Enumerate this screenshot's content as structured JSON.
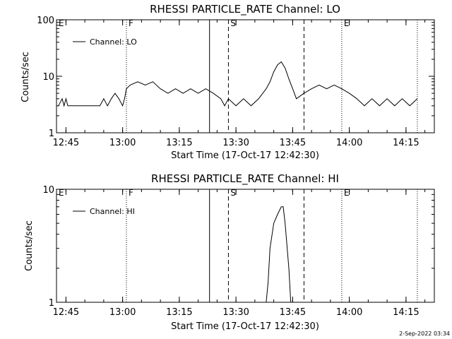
{
  "footer": {
    "timestamp": "2-Sep-2022 03:34"
  },
  "chart_data": [
    {
      "type": "line",
      "title": "RHESSI PARTICLE_RATE Channel: LO",
      "xlabel": "Start Time (17-Oct-17 12:42:30)",
      "ylabel": "Counts/sec",
      "yscale": "log",
      "ylim": [
        1,
        100
      ],
      "yticks": [
        "1",
        "10",
        "100"
      ],
      "xlim": [
        "12:42:30",
        "14:22:30"
      ],
      "xticks": [
        "12:45",
        "13:00",
        "13:15",
        "13:30",
        "13:45",
        "14:00",
        "14:15"
      ],
      "legend": {
        "label": "Channel: LO",
        "position": "top-left"
      },
      "markers": [
        {
          "label": "E",
          "time": "12:42:30",
          "style": "none"
        },
        {
          "label": "F",
          "time": "13:01",
          "style": "dotted"
        },
        {
          "label": "",
          "time": "13:23",
          "style": "solid"
        },
        {
          "label": "S",
          "time": "13:28",
          "style": "dashed"
        },
        {
          "label": "",
          "time": "13:48",
          "style": "dashed"
        },
        {
          "label": "E",
          "time": "13:58",
          "style": "dotted"
        },
        {
          "label": "",
          "time": "14:18",
          "style": "dotted"
        }
      ],
      "series": [
        {
          "x": [
            "12:43",
            "12:44",
            "12:44:30",
            "12:45",
            "12:45:30",
            "12:46",
            "12:50",
            "12:54",
            "12:55",
            "12:56",
            "12:57",
            "12:58",
            "12:59",
            "13:00",
            "13:00:30",
            "13:01",
            "13:02",
            "13:04",
            "13:06",
            "13:08",
            "13:10",
            "13:12",
            "13:14",
            "13:16",
            "13:18",
            "13:20",
            "13:22",
            "13:24",
            "13:26",
            "13:27",
            "13:28",
            "13:30",
            "13:32",
            "13:34",
            "13:36",
            "13:38",
            "13:39",
            "13:40",
            "13:41",
            "13:42",
            "13:43",
            "13:44",
            "13:45",
            "13:46",
            "13:48",
            "13:50",
            "13:52",
            "13:54",
            "13:56",
            "13:58",
            "14:00",
            "14:02",
            "14:04",
            "14:06",
            "14:08",
            "14:10",
            "14:12",
            "14:14",
            "14:16",
            "14:18"
          ],
          "y": [
            3,
            4,
            3,
            4,
            3,
            3,
            3,
            3,
            4,
            3,
            4,
            5,
            4,
            3,
            4,
            6,
            7,
            8,
            7,
            8,
            6,
            5,
            6,
            5,
            6,
            5,
            6,
            5,
            4,
            3,
            4,
            3,
            4,
            3,
            4,
            6,
            8,
            12,
            16,
            18,
            14,
            9,
            6,
            4,
            5,
            6,
            7,
            6,
            7,
            6,
            5,
            4,
            3,
            4,
            3,
            4,
            3,
            4,
            3,
            4
          ]
        }
      ]
    },
    {
      "type": "line",
      "title": "RHESSI PARTICLE_RATE Channel: HI",
      "xlabel": "Start Time (17-Oct-17 12:42:30)",
      "ylabel": "Counts/sec",
      "yscale": "log",
      "ylim": [
        1,
        10
      ],
      "yticks": [
        "1",
        "10"
      ],
      "xlim": [
        "12:42:30",
        "14:22:30"
      ],
      "xticks": [
        "12:45",
        "13:00",
        "13:15",
        "13:30",
        "13:45",
        "14:00",
        "14:15"
      ],
      "legend": {
        "label": "Channel: HI",
        "position": "top-left"
      },
      "markers": [
        {
          "label": "E",
          "time": "12:42:30",
          "style": "none"
        },
        {
          "label": "F",
          "time": "13:01",
          "style": "dotted"
        },
        {
          "label": "",
          "time": "13:23",
          "style": "solid"
        },
        {
          "label": "S",
          "time": "13:28",
          "style": "dashed"
        },
        {
          "label": "",
          "time": "13:48",
          "style": "dashed"
        },
        {
          "label": "E",
          "time": "13:58",
          "style": "dotted"
        },
        {
          "label": "",
          "time": "14:18",
          "style": "dotted"
        }
      ],
      "series": [
        {
          "x": [
            "13:38",
            "13:38:30",
            "13:39",
            "13:40",
            "13:41",
            "13:42",
            "13:42:30",
            "13:43",
            "13:44",
            "13:44:30"
          ],
          "y": [
            1,
            1.5,
            3,
            5,
            6,
            7,
            7,
            5,
            2,
            1
          ]
        }
      ]
    }
  ]
}
